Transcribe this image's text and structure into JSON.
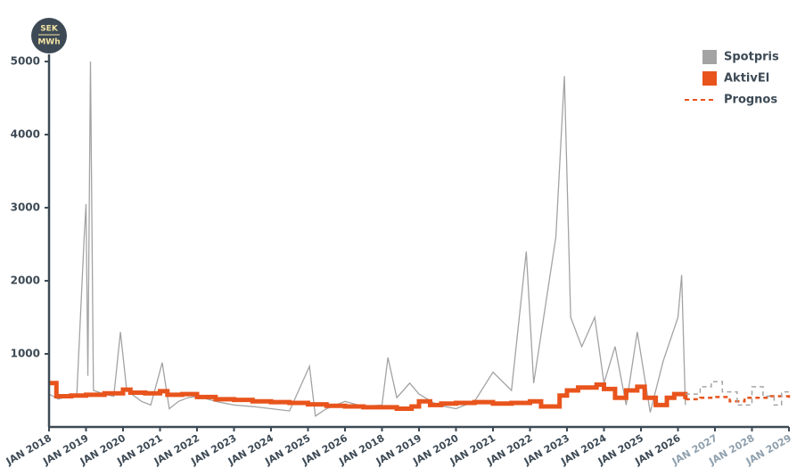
{
  "chart_data": {
    "type": "line",
    "unit_top": "SEK",
    "unit_bottom": "MWh",
    "xlim": [
      0,
      20
    ],
    "ylim": [
      0,
      5000
    ],
    "yticks": [
      1000,
      2000,
      3000,
      4000,
      5000
    ],
    "xticks": [
      {
        "value": 0,
        "label": "JAN 2018",
        "color": "#3d4a55"
      },
      {
        "value": 1,
        "label": "JAN 2019",
        "color": "#3d4a55"
      },
      {
        "value": 2,
        "label": "JAN 2020",
        "color": "#3d4a55"
      },
      {
        "value": 3,
        "label": "JAN 2021",
        "color": "#3d4a55"
      },
      {
        "value": 4,
        "label": "JAN 2022",
        "color": "#3d4a55"
      },
      {
        "value": 5,
        "label": "JAN 2023",
        "color": "#3d4a55"
      },
      {
        "value": 6,
        "label": "JAN 2024",
        "color": "#3d4a55"
      },
      {
        "value": 7,
        "label": "JAN 2025",
        "color": "#3d4a55"
      },
      {
        "value": 8,
        "label": "JAN 2026",
        "color": "#3d4a55"
      },
      {
        "value": 9,
        "label": "JAN 2018",
        "color": "#3d4a55"
      },
      {
        "value": 10,
        "label": "JAN 2019",
        "color": "#3d4a55"
      },
      {
        "value": 11,
        "label": "JAN 2020",
        "color": "#3d4a55"
      },
      {
        "value": 12,
        "label": "JAN 2021",
        "color": "#3d4a55"
      },
      {
        "value": 13,
        "label": "JAN 2022",
        "color": "#3d4a55"
      },
      {
        "value": 14,
        "label": "JAN 2023",
        "color": "#3d4a55"
      },
      {
        "value": 15,
        "label": "JAN 2024",
        "color": "#3d4a55"
      },
      {
        "value": 16,
        "label": "JAN 2025",
        "color": "#3d4a55"
      },
      {
        "value": 17,
        "label": "JAN 2026",
        "color": "#3d4a55"
      },
      {
        "value": 18,
        "label": "JAN 2027",
        "color": "#8fa0ae"
      },
      {
        "value": 19,
        "label": "JAN 2028",
        "color": "#8fa0ae"
      },
      {
        "value": 20,
        "label": "JAN 2029",
        "color": "#8fa0ae"
      }
    ],
    "legend": "top-right",
    "series": [
      {
        "name": "Spotpris",
        "color": "#a3a3a3",
        "style": "solid",
        "step": false,
        "x": [
          0,
          0.25,
          0.5,
          0.75,
          0.95,
          1.0,
          1.05,
          1.12,
          1.2,
          1.5,
          1.75,
          1.93,
          2.1,
          2.5,
          2.75,
          3.06,
          3.25,
          3.5,
          3.75,
          4.0,
          4.5,
          5.0,
          5.5,
          6.0,
          6.5,
          7.04,
          7.2,
          7.5,
          8.0,
          8.5,
          9.0,
          9.16,
          9.4,
          9.75,
          10.0,
          10.5,
          11.0,
          11.5,
          12.0,
          12.5,
          12.9,
          13.1,
          13.4,
          13.7,
          13.93,
          14.1,
          14.4,
          14.75,
          15.0,
          15.3,
          15.6,
          15.9,
          16.25,
          16.6,
          17.0,
          17.1,
          17.2
        ],
        "values": [
          450,
          380,
          420,
          430,
          2600,
          3050,
          700,
          5000,
          500,
          450,
          420,
          1300,
          500,
          350,
          300,
          880,
          250,
          350,
          400,
          420,
          350,
          300,
          280,
          250,
          220,
          830,
          150,
          250,
          350,
          280,
          300,
          950,
          400,
          600,
          450,
          300,
          250,
          350,
          750,
          500,
          2400,
          600,
          1600,
          2600,
          4800,
          1500,
          1100,
          1500,
          600,
          1100,
          300,
          1300,
          200,
          900,
          1500,
          2080,
          300
        ]
      },
      {
        "name": "AktivEl",
        "color": "#e8541c",
        "style": "solid",
        "step": true,
        "x": [
          0,
          0.2,
          0.6,
          1.0,
          1.5,
          2.0,
          2.2,
          2.6,
          3.0,
          3.2,
          3.6,
          4.0,
          4.5,
          5.0,
          5.5,
          6.0,
          6.5,
          7.0,
          7.5,
          8.0,
          8.5,
          9.0,
          9.4,
          9.8,
          10.0,
          10.3,
          10.6,
          11.0,
          11.5,
          12.0,
          12.5,
          13.0,
          13.3,
          13.8,
          14.0,
          14.3,
          14.8,
          15.0,
          15.3,
          15.6,
          15.9,
          16.1,
          16.4,
          16.7,
          16.9,
          17.2
        ],
        "values": [
          600,
          420,
          430,
          440,
          460,
          510,
          470,
          460,
          490,
          440,
          450,
          410,
          380,
          370,
          350,
          340,
          330,
          310,
          290,
          280,
          270,
          270,
          250,
          280,
          350,
          300,
          320,
          330,
          340,
          320,
          330,
          350,
          280,
          430,
          500,
          540,
          580,
          520,
          400,
          500,
          550,
          400,
          300,
          400,
          450,
          380
        ]
      },
      {
        "name": "Prognos",
        "color": "#e8541c",
        "style": "dashed",
        "step": true,
        "x": [
          17.2,
          17.6,
          18.0,
          18.4,
          18.8,
          19.5,
          20.0
        ],
        "values": [
          380,
          400,
          410,
          350,
          400,
          420,
          400
        ]
      },
      {
        "color": "#a3a3a3",
        "style": "dashed",
        "step": true,
        "x": [
          17.2,
          17.6,
          17.9,
          18.2,
          18.6,
          19.0,
          19.3,
          19.6,
          19.8,
          20.0
        ],
        "values": [
          450,
          550,
          620,
          480,
          300,
          550,
          420,
          300,
          480,
          470
        ]
      }
    ]
  }
}
